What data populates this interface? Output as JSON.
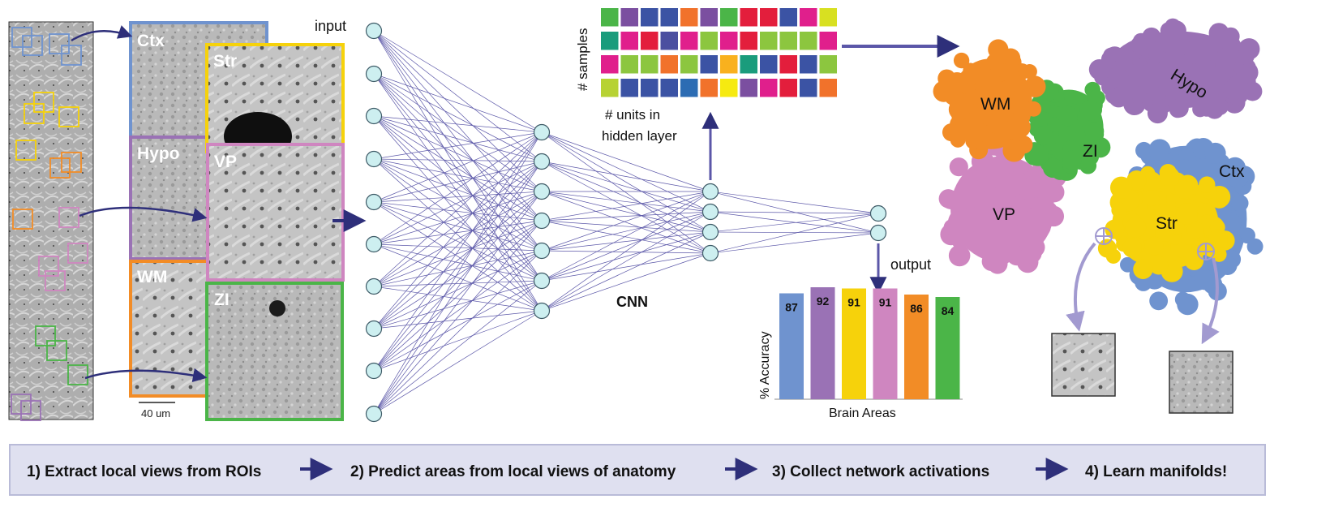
{
  "colors": {
    "ctx": "#6f93cf",
    "str": "#f6d20b",
    "hypo": "#9a72b5",
    "vp": "#cf86c0",
    "wm": "#f28c26",
    "zi": "#4bb548",
    "arrow": "#2e2f7a",
    "edge": "#5b57a8",
    "node_fill": "#cdeff0",
    "banner_bg": "#dfe0f0",
    "banner_border": "#b9bbd8"
  },
  "panel1": {
    "roi_labels": [
      "Ctx",
      "Str",
      "Hypo",
      "VP",
      "WM",
      "ZI"
    ],
    "scale_bar": "40 um"
  },
  "network": {
    "input_label": "input",
    "output_label": "output",
    "cnn_label": "CNN",
    "layers": [
      10,
      7,
      4,
      2
    ]
  },
  "activations": {
    "y_label": "# samples",
    "x_label_line1": "# units in",
    "x_label_line2": "hidden layer",
    "grid": [
      [
        "#4bb548",
        "#7b4fa0",
        "#3b53a4",
        "#3b53a4",
        "#f1722b",
        "#7b4fa0",
        "#4bb548",
        "#e31e3c",
        "#e31e3c",
        "#3b53a4",
        "#e01f8c",
        "#d8e021"
      ],
      [
        "#1a9c7c",
        "#e01f8c",
        "#e31e3c",
        "#4b4fa0",
        "#e01f8c",
        "#8cc63f",
        "#e01f8c",
        "#e31e3c",
        "#8cc63f",
        "#8cc63f",
        "#8cc63f",
        "#e01f8c"
      ],
      [
        "#e01f8c",
        "#8cc63f",
        "#8cc63f",
        "#f1722b",
        "#8cc63f",
        "#3b53a4",
        "#f9b11e",
        "#1a9c7c",
        "#3b53a4",
        "#e31e3c",
        "#3b53a4",
        "#8cc63f"
      ],
      [
        "#b7d233",
        "#3b53a4",
        "#3b53a4",
        "#3b53a4",
        "#2c6cb3",
        "#f1722b",
        "#f6ea10",
        "#7b4fa0",
        "#e01f8c",
        "#e31e3c",
        "#3b53a4",
        "#f1722b"
      ]
    ]
  },
  "accuracy": {
    "y_label": "% Accuracy",
    "x_label": "Brain Areas"
  },
  "chart_data": {
    "type": "bar",
    "categories": [
      "Ctx",
      "Hypo",
      "Str",
      "VP",
      "WM",
      "ZI"
    ],
    "values": [
      87,
      92,
      91,
      91,
      86,
      84
    ],
    "ylabel": "% Accuracy",
    "xlabel": "Brain Areas",
    "ylim": [
      0,
      100
    ]
  },
  "manifold": {
    "labels": [
      {
        "key": "hypo",
        "text": "Hypo"
      },
      {
        "key": "wm",
        "text": "WM"
      },
      {
        "key": "zi",
        "text": "ZI"
      },
      {
        "key": "ctx",
        "text": "Ctx"
      },
      {
        "key": "vp",
        "text": "VP"
      },
      {
        "key": "str",
        "text": "Str"
      }
    ]
  },
  "banner": {
    "step1": "1)  Extract local views from ROIs",
    "step2": "2)  Predict areas from local views of anatomy",
    "step3": "3)  Collect network activations",
    "step4": "4) Learn manifolds!"
  }
}
